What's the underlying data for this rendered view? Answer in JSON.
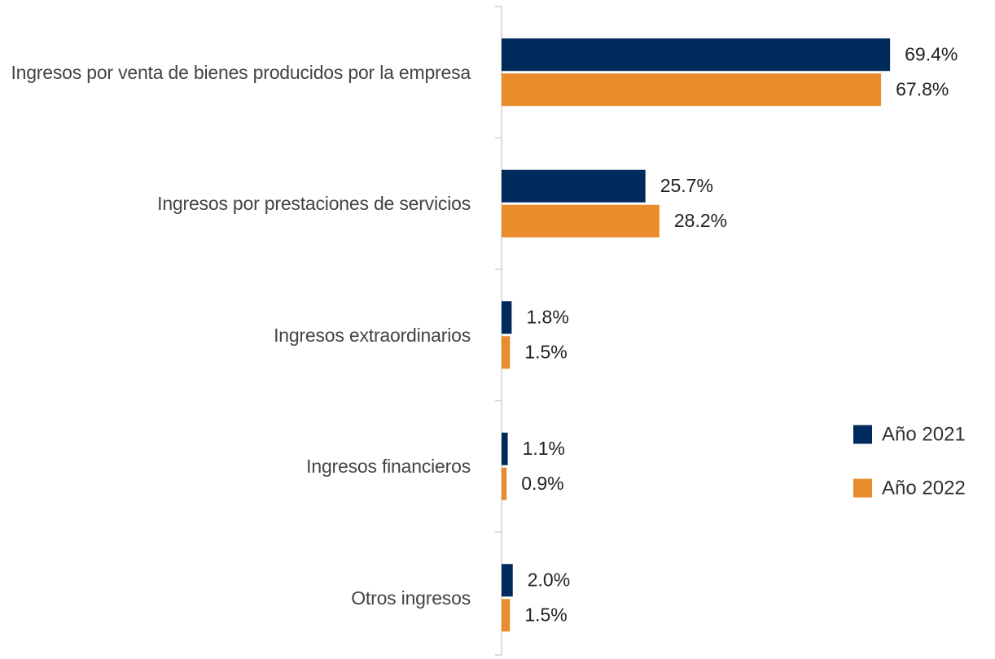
{
  "chart_data": {
    "type": "bar",
    "orientation": "horizontal",
    "categories": [
      "Ingresos por venta de bienes producidos por la empresa",
      "Ingresos por prestaciones de servicios",
      "Ingresos extraordinarios",
      "Ingresos financieros",
      "Otros ingresos"
    ],
    "series": [
      {
        "name": "Año 2021",
        "color": "#002a5c",
        "values": [
          69.4,
          25.7,
          1.8,
          1.1,
          2.0
        ],
        "value_labels": [
          "69.4%",
          "25.7%",
          "1.8%",
          "1.1%",
          "2.0%"
        ]
      },
      {
        "name": "Año 2022",
        "color": "#e98c2c",
        "values": [
          67.8,
          28.2,
          1.5,
          0.9,
          1.5
        ],
        "value_labels": [
          "67.8%",
          "28.2%",
          "1.5%",
          "0.9%",
          "1.5%"
        ]
      }
    ],
    "legend": "right"
  }
}
